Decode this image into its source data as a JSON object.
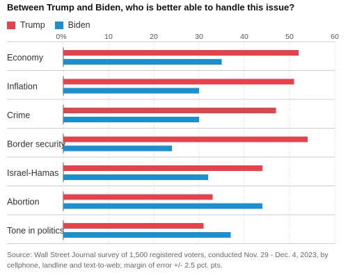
{
  "title": "Between Trump and Biden, who is better able to handle this issue?",
  "colors": {
    "trump": "#e4434b",
    "biden": "#1a8fd1",
    "grid": "#d0d0d0",
    "axis": "#555555"
  },
  "chart_data": {
    "type": "bar",
    "orientation": "horizontal",
    "title": "Between Trump and Biden, who is better able to handle this issue?",
    "categories": [
      "Economy",
      "Inflation",
      "Crime",
      "Border security",
      "Israel-Hamas",
      "Abortion",
      "Tone in politics"
    ],
    "series": [
      {
        "name": "Trump",
        "values": [
          52,
          51,
          47,
          54,
          44,
          33,
          31
        ]
      },
      {
        "name": "Biden",
        "values": [
          35,
          30,
          30,
          24,
          32,
          44,
          37
        ]
      }
    ],
    "xlim": [
      0,
      60
    ],
    "xticks": [
      0,
      10,
      20,
      30,
      40,
      50,
      60
    ],
    "xtick_labels": [
      "0%",
      "10",
      "20",
      "30",
      "40",
      "50",
      "60"
    ],
    "grid": true,
    "legend": "top-left"
  },
  "source": "Source: Wall Street Journal survey of 1,500 registered voters, conducted Nov. 29 - Dec. 4, 2023, by cellphone, landline and text-to-web; margin of error +/- 2.5 pct. pts."
}
